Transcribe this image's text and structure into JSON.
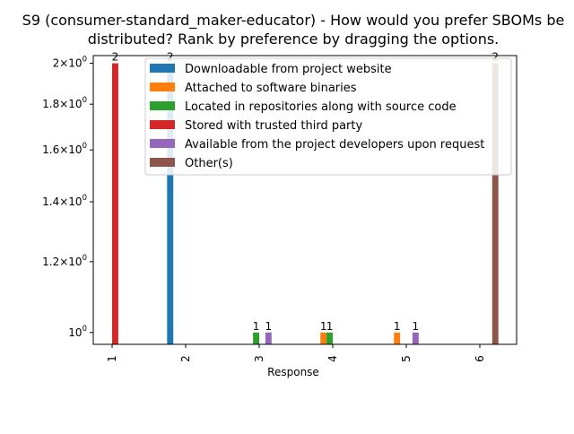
{
  "chart_data": {
    "type": "bar",
    "title_line1": "S9 (consumer-standard_maker-educator) - How would you prefer SBOMs be",
    "title_line2": "distributed? Rank by preference by dragging the options.",
    "xlabel": "Response",
    "ylabel": "",
    "yscale": "log",
    "ylim": [
      0.97,
      2.04
    ],
    "yticks": [
      {
        "value": 1.0,
        "base": "10",
        "exp": "0"
      },
      {
        "value": 1.2,
        "base": "1.2×10",
        "exp": "0"
      },
      {
        "value": 1.4,
        "base": "1.4×10",
        "exp": "0"
      },
      {
        "value": 1.6,
        "base": "1.6×10",
        "exp": "0"
      },
      {
        "value": 1.8,
        "base": "1.8×10",
        "exp": "0"
      },
      {
        "value": 2.0,
        "base": "2×10",
        "exp": "0"
      }
    ],
    "categories": [
      "1",
      "2",
      "3",
      "4",
      "5",
      "6"
    ],
    "legend_position": "top-right",
    "series": [
      {
        "name": "Downloadable from project website",
        "color": "#1f77b4",
        "values": [
          null,
          2,
          null,
          null,
          null,
          null
        ],
        "labels": [
          "",
          "2",
          "",
          "",
          "",
          ""
        ]
      },
      {
        "name": "Attached to software binaries",
        "color": "#ff7f0e",
        "values": [
          null,
          null,
          null,
          1,
          1,
          null
        ],
        "labels": [
          "",
          "",
          "",
          "1",
          "1",
          ""
        ]
      },
      {
        "name": "Located in repositories along with source code",
        "color": "#2ca02c",
        "values": [
          null,
          null,
          1,
          1,
          null,
          null
        ],
        "labels": [
          "",
          "",
          "1",
          "1",
          "",
          ""
        ]
      },
      {
        "name": "Stored with trusted third party",
        "color": "#d62728",
        "values": [
          2,
          null,
          null,
          null,
          null,
          null
        ],
        "labels": [
          "2",
          "",
          "",
          "",
          "",
          ""
        ]
      },
      {
        "name": "Available from the project developers upon request",
        "color": "#9467bd",
        "values": [
          null,
          null,
          1,
          null,
          1,
          null
        ],
        "labels": [
          "",
          "",
          "1",
          "",
          "1",
          ""
        ]
      },
      {
        "name": "Other(s)",
        "color": "#8c564b",
        "values": [
          null,
          null,
          null,
          null,
          null,
          2
        ],
        "labels": [
          "",
          "",
          "",
          "",
          "",
          "2"
        ]
      }
    ]
  }
}
